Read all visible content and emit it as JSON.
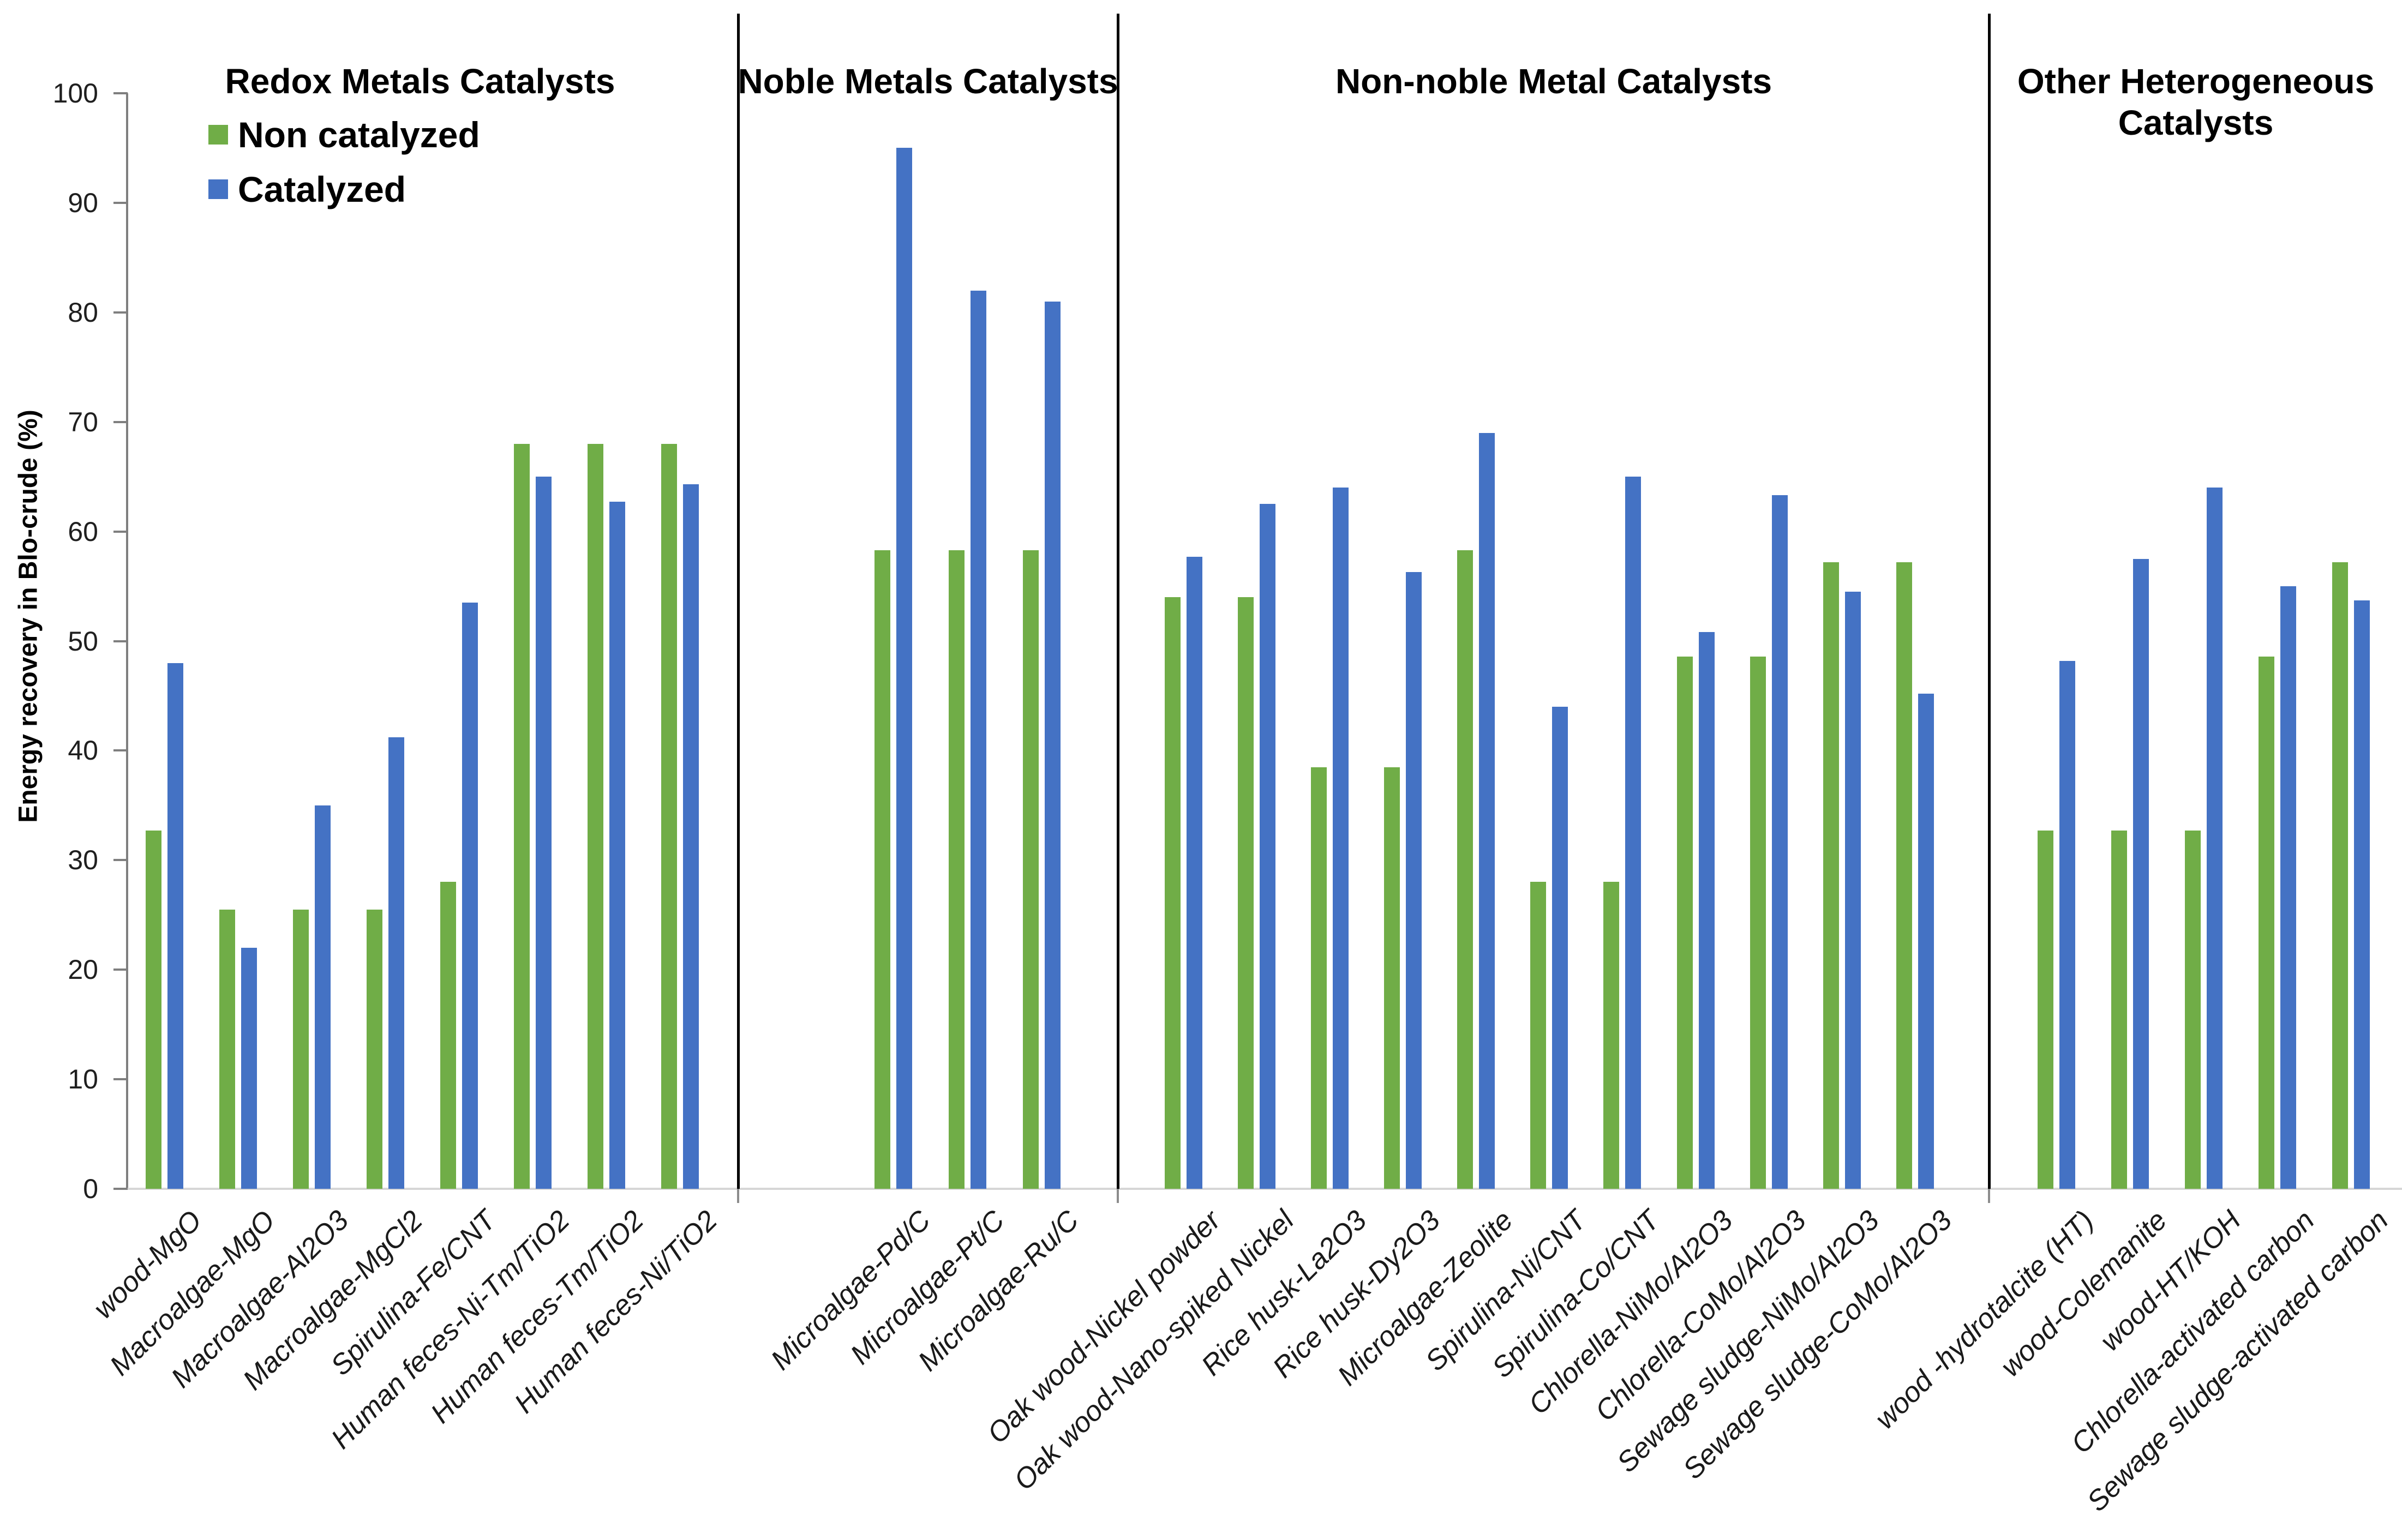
{
  "chart_data": {
    "type": "bar",
    "title": "",
    "ylabel": "Energy recovery in Blo-crude (%)",
    "xlabel": "",
    "ylim": [
      0,
      100
    ],
    "yticks": [
      0,
      10,
      20,
      30,
      40,
      50,
      60,
      70,
      80,
      90,
      100
    ],
    "grid": false,
    "legend": {
      "position": "top-left-inside",
      "entries": [
        {
          "label": "Non catalyzed",
          "color": "#70AD47"
        },
        {
          "label": "Catalyzed",
          "color": "#4472C4"
        }
      ]
    },
    "series_names": [
      "Non catalyzed",
      "Catalyzed"
    ],
    "colors": {
      "non_catalyzed": "#70AD47",
      "catalyzed": "#4472C4"
    },
    "sections": [
      {
        "title": "Redox Metals Catalysts",
        "groups": [
          {
            "label": "wood-MgO",
            "non_catalyzed": 32.7,
            "catalyzed": 48
          },
          {
            "label": "Macroalgae-MgO",
            "non_catalyzed": 25.5,
            "catalyzed": 22
          },
          {
            "label": "Macroalgae-Al2O3",
            "non_catalyzed": 25.5,
            "catalyzed": 35
          },
          {
            "label": "Macroalgae-MgCl2",
            "non_catalyzed": 25.5,
            "catalyzed": 41.2
          },
          {
            "label": "Spirulina-Fe/CNT",
            "non_catalyzed": 28,
            "catalyzed": 53.5
          },
          {
            "label": "Human feces-Ni-Tm/TiO2",
            "non_catalyzed": 68,
            "catalyzed": 65
          },
          {
            "label": "Human feces-Tm/TiO2",
            "non_catalyzed": 68,
            "catalyzed": 62.7
          },
          {
            "label": "Human feces-Ni/TiO2",
            "non_catalyzed": 68,
            "catalyzed": 64.3
          }
        ]
      },
      {
        "title": "Noble Metals Catalysts",
        "groups": [
          {
            "label": "Microalgae-Pd/C",
            "non_catalyzed": 58.3,
            "catalyzed": 95
          },
          {
            "label": "Microalgae-Pt/C",
            "non_catalyzed": 58.3,
            "catalyzed": 82
          },
          {
            "label": "Microalgae-Ru/C",
            "non_catalyzed": 58.3,
            "catalyzed": 81
          }
        ]
      },
      {
        "title": "Non-noble Metal Catalysts",
        "groups": [
          {
            "label": "Oak wood-Nickel powder",
            "non_catalyzed": 54,
            "catalyzed": 57.7
          },
          {
            "label": "Oak wood-Nano-spiked Nickel",
            "non_catalyzed": 54,
            "catalyzed": 62.5
          },
          {
            "label": "Rice husk-La2O3",
            "non_catalyzed": 38.5,
            "catalyzed": 64
          },
          {
            "label": "Rice husk-Dy2O3",
            "non_catalyzed": 38.5,
            "catalyzed": 56.3
          },
          {
            "label": "Microalgae-Zeolite",
            "non_catalyzed": 58.3,
            "catalyzed": 69
          },
          {
            "label": "Spirulina-Ni/CNT",
            "non_catalyzed": 28,
            "catalyzed": 44
          },
          {
            "label": "Spirulina-Co/CNT",
            "non_catalyzed": 28,
            "catalyzed": 65
          },
          {
            "label": "Chlorella-NiMo/Al2O3",
            "non_catalyzed": 48.6,
            "catalyzed": 50.8
          },
          {
            "label": "Chlorella-CoMo/Al2O3",
            "non_catalyzed": 48.6,
            "catalyzed": 63.3
          },
          {
            "label": "Sewage sludge-NiMo/Al2O3",
            "non_catalyzed": 57.2,
            "catalyzed": 54.5
          },
          {
            "label": "Sewage sludge-CoMo/Al2O3",
            "non_catalyzed": 57.2,
            "catalyzed": 45.2
          }
        ]
      },
      {
        "title": "Other Heterogeneous Catalysts",
        "groups": [
          {
            "label": "wood -hydrotalcite (HT)",
            "non_catalyzed": 32.7,
            "catalyzed": 48.2
          },
          {
            "label": "wood-Colemanite",
            "non_catalyzed": 32.7,
            "catalyzed": 57.5
          },
          {
            "label": "wood-HT/KOH",
            "non_catalyzed": 32.7,
            "catalyzed": 64
          },
          {
            "label": "Chlorella-activated carbon",
            "non_catalyzed": 48.6,
            "catalyzed": 55
          },
          {
            "label": "Sewage sludge-activated carbon",
            "non_catalyzed": 57.2,
            "catalyzed": 53.7
          }
        ]
      }
    ]
  }
}
